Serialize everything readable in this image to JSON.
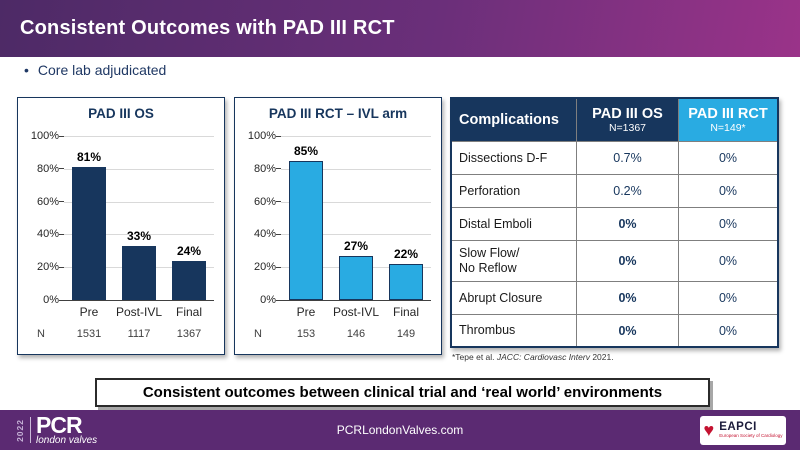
{
  "slide": {
    "title": "Consistent Outcomes with PAD III RCT",
    "bullet": "Core lab adjudicated"
  },
  "chart_data": [
    {
      "type": "bar",
      "title": "PAD III OS",
      "categories": [
        "Pre",
        "Post-IVL",
        "Final"
      ],
      "values": [
        81,
        33,
        24
      ],
      "value_labels": [
        "81%",
        "33%",
        "24%"
      ],
      "n_label": "N",
      "n_values": [
        "1531",
        "1117",
        "1367"
      ],
      "ylim": [
        0,
        100
      ],
      "ytick_step": 20,
      "ytick_suffix": "%",
      "grid": true,
      "legend": "none",
      "bar_color": "#17365d",
      "bar_border": "#17365d"
    },
    {
      "type": "bar",
      "title": "PAD III RCT – IVL arm",
      "categories": [
        "Pre",
        "Post-IVL",
        "Final"
      ],
      "values": [
        85,
        27,
        22
      ],
      "value_labels": [
        "85%",
        "27%",
        "22%"
      ],
      "n_label": "N",
      "n_values": [
        "153",
        "146",
        "149"
      ],
      "ylim": [
        0,
        100
      ],
      "ytick_step": 20,
      "ytick_suffix": "%",
      "grid": true,
      "legend": "none",
      "bar_color": "#29abe2",
      "bar_border": "#17365d"
    }
  ],
  "table": {
    "header": {
      "col1": "Complications",
      "col2_title": "PAD III OS",
      "col2_sub": "N=1367",
      "col3_title": "PAD III RCT",
      "col3_sub": "N=149*"
    },
    "rows": [
      {
        "label": "Dissections D-F",
        "os": "0.7%",
        "rct": "0%",
        "os_bold": false
      },
      {
        "label": "Perforation",
        "os": "0.2%",
        "rct": "0%",
        "os_bold": false
      },
      {
        "label": "Distal Emboli",
        "os": "0%",
        "rct": "0%",
        "os_bold": true
      },
      {
        "label": "Slow Flow/\nNo Reflow",
        "os": "0%",
        "rct": "0%",
        "os_bold": true
      },
      {
        "label": "Abrupt Closure",
        "os": "0%",
        "rct": "0%",
        "os_bold": true
      },
      {
        "label": "Thrombus",
        "os": "0%",
        "rct": "0%",
        "os_bold": true
      }
    ],
    "footnote_pre": "*Tepe et al. ",
    "footnote_italic": "JACC: Cardiovasc Interv",
    "footnote_post": " 2021."
  },
  "banner": "Consistent outcomes between clinical trial and ‘real world’ environments",
  "footer": {
    "year": "2022",
    "brand": "PCR",
    "brand_sub": "london valves",
    "website": "PCRLondonValves.com",
    "eapci_heart": "♥",
    "eapci_label": "EAPCI",
    "eapci_sub": "European Society of Cardiology"
  },
  "colors": {
    "header_gradient_left": "#4d2a66",
    "header_gradient_right": "#9a3389",
    "navy": "#17365d",
    "cyan": "#29abe2",
    "footer_purple": "#5b2a72",
    "eapci_red": "#c41230"
  }
}
